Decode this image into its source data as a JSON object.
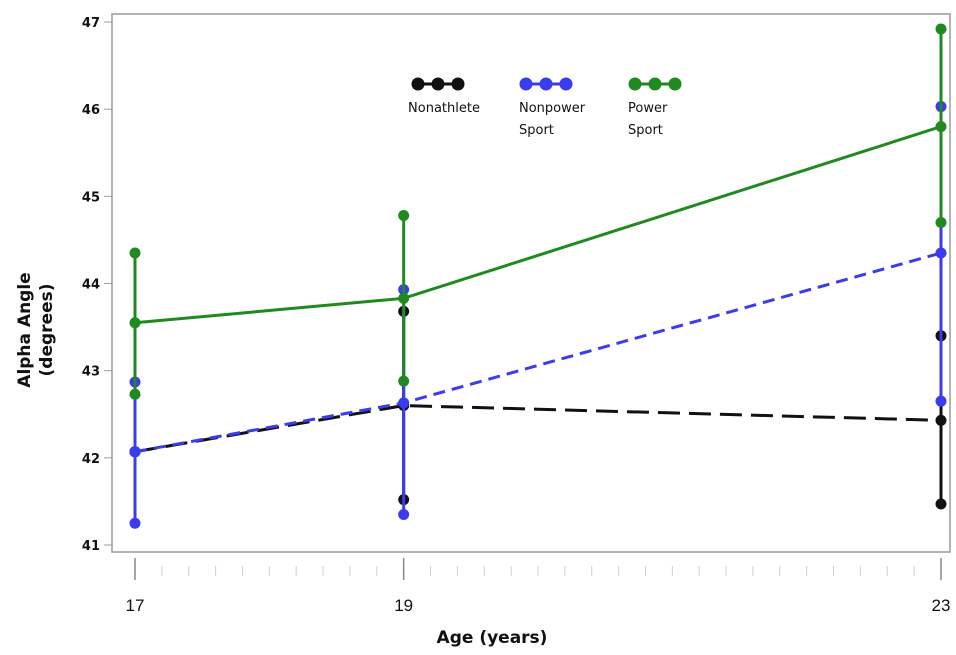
{
  "chart_data": {
    "type": "line",
    "title": "",
    "xlabel": "Age (years)",
    "ylabel": [
      "Alpha Angle",
      "(degrees)"
    ],
    "x": [
      17,
      19,
      23
    ],
    "xlim": [
      17,
      23
    ],
    "ylim": [
      41,
      47
    ],
    "yticks": [
      41,
      42,
      43,
      44,
      45,
      46,
      47
    ],
    "xticks": [
      17,
      19,
      23
    ],
    "grid": false,
    "legend_position": "top-center",
    "series": [
      {
        "name": "Nonathlete",
        "color": "#111111",
        "dash": "long-dash",
        "values": [
          42.07,
          42.6,
          42.43
        ],
        "ci_low": [
          42.07,
          41.52,
          41.47
        ],
        "ci_high": [
          42.07,
          43.68,
          43.4
        ]
      },
      {
        "name": "Nonpower Sport",
        "color": "#3b3bf0",
        "dash": "short-dash",
        "values": [
          42.07,
          42.63,
          44.35
        ],
        "ci_low": [
          41.25,
          41.35,
          42.65
        ],
        "ci_high": [
          42.87,
          43.93,
          46.03
        ]
      },
      {
        "name": "Power Sport",
        "color": "#1f8a1f",
        "dash": "solid",
        "values": [
          43.55,
          43.83,
          45.8
        ],
        "ci_low": [
          42.73,
          42.88,
          44.7
        ],
        "ci_high": [
          44.35,
          44.78,
          46.92
        ]
      }
    ],
    "legend_lines": [
      [
        "Nonathlete"
      ],
      [
        "Nonpower",
        "Sport"
      ],
      [
        "Power",
        "Sport"
      ]
    ]
  }
}
